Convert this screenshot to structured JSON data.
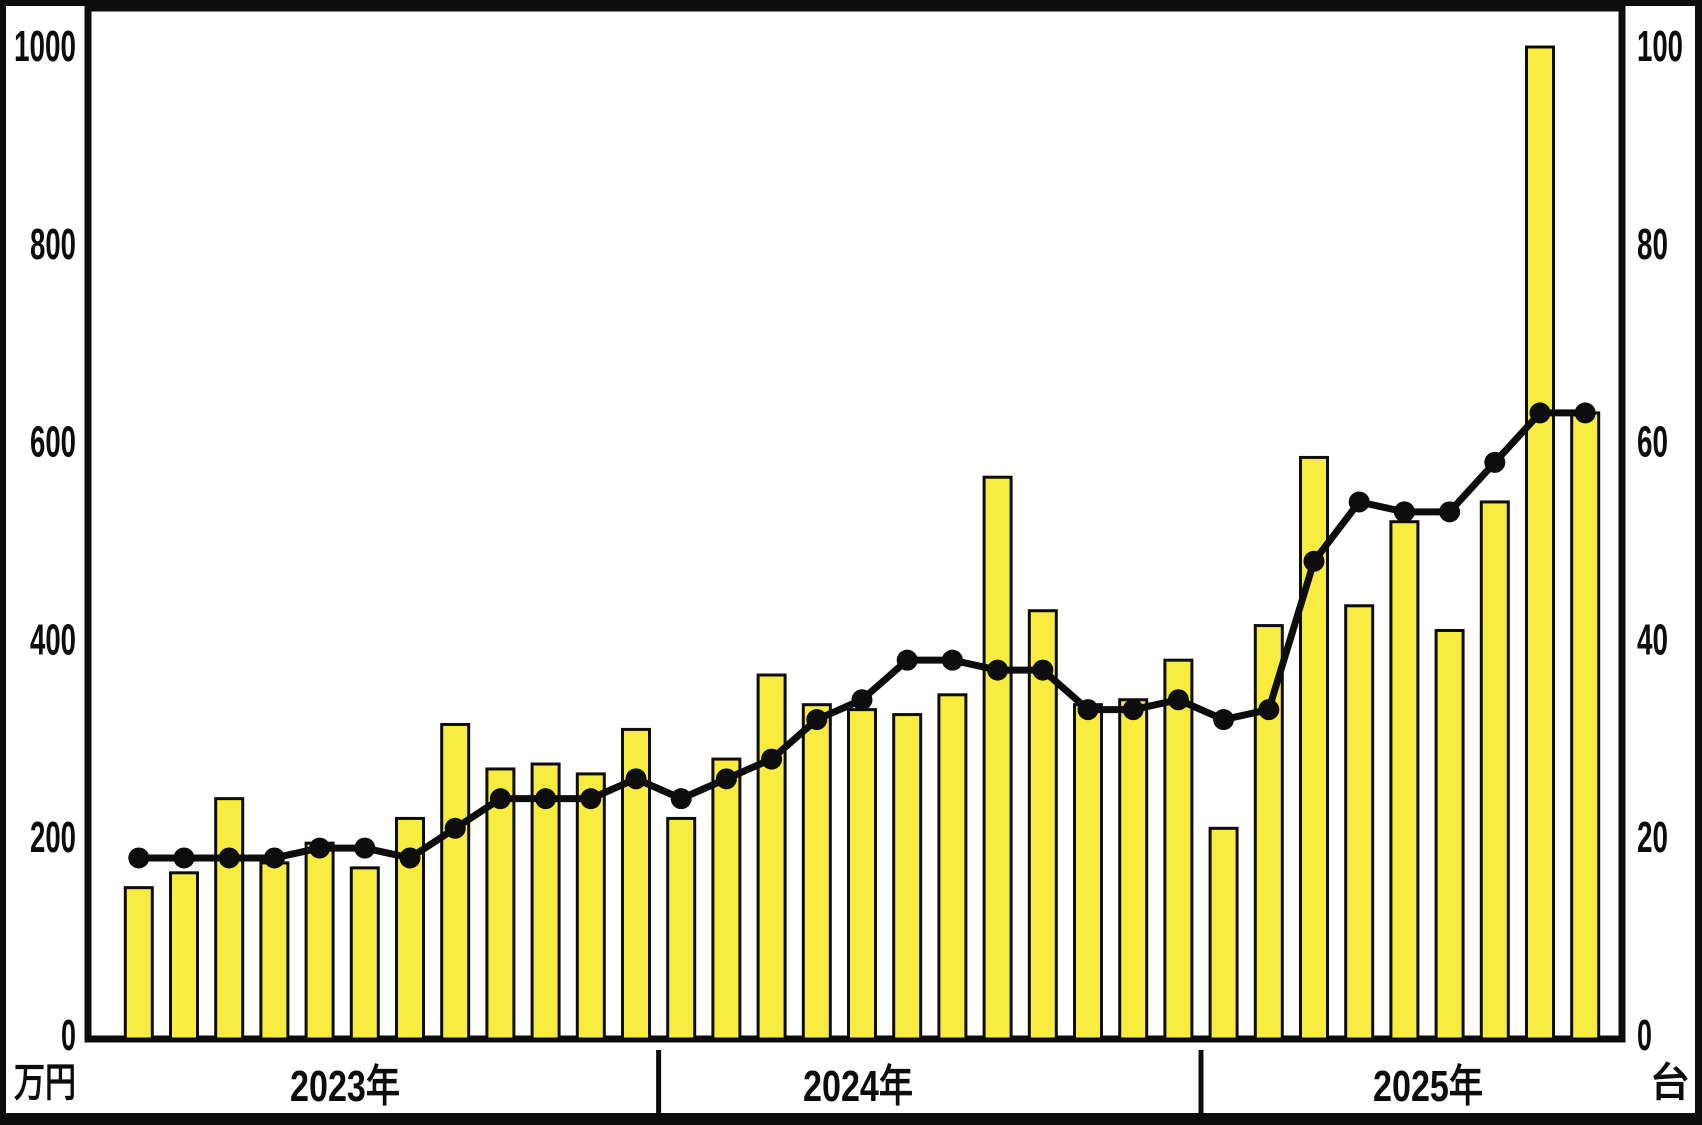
{
  "chart_data": {
    "type": "bar+line",
    "title": "",
    "legend": "none",
    "grid": "off",
    "left_axis": {
      "unit": "万円",
      "ticks": [
        "0",
        "200",
        "400",
        "600",
        "800",
        "1000"
      ],
      "range": [
        0,
        1000
      ]
    },
    "right_axis": {
      "unit": "台",
      "ticks": [
        "0",
        "20",
        "40",
        "60",
        "80",
        "100"
      ],
      "range": [
        0,
        100
      ]
    },
    "x_axis": {
      "year_groups": [
        {
          "label": "2023年",
          "bar_values_man_yen": [
            150,
            165,
            240,
            175,
            195,
            170,
            220,
            315,
            270,
            275,
            265,
            310
          ],
          "line_values_dai": [
            18,
            18,
            18,
            18,
            19,
            19,
            18,
            21,
            24,
            24,
            24,
            26
          ]
        },
        {
          "label": "2024年",
          "bar_values_man_yen": [
            220,
            280,
            365,
            335,
            330,
            325,
            345,
            565,
            430,
            335,
            340,
            380
          ],
          "line_values_dai": [
            24,
            26,
            28,
            32,
            34,
            38,
            38,
            37,
            37,
            33,
            33,
            34
          ]
        },
        {
          "label": "2025年",
          "bar_values_man_yen": [
            210,
            415,
            585,
            435,
            520,
            410,
            540,
            1000,
            630
          ],
          "line_values_dai": [
            32,
            33,
            48,
            54,
            53,
            53,
            58,
            63,
            63
          ]
        }
      ]
    },
    "styles": {
      "bar_fill": "#F7EC3F",
      "bar_stroke": "#0d0d0d",
      "line_color": "#0d0d0d",
      "frame_color": "#0d0d0d",
      "background": "#ffffff"
    }
  }
}
